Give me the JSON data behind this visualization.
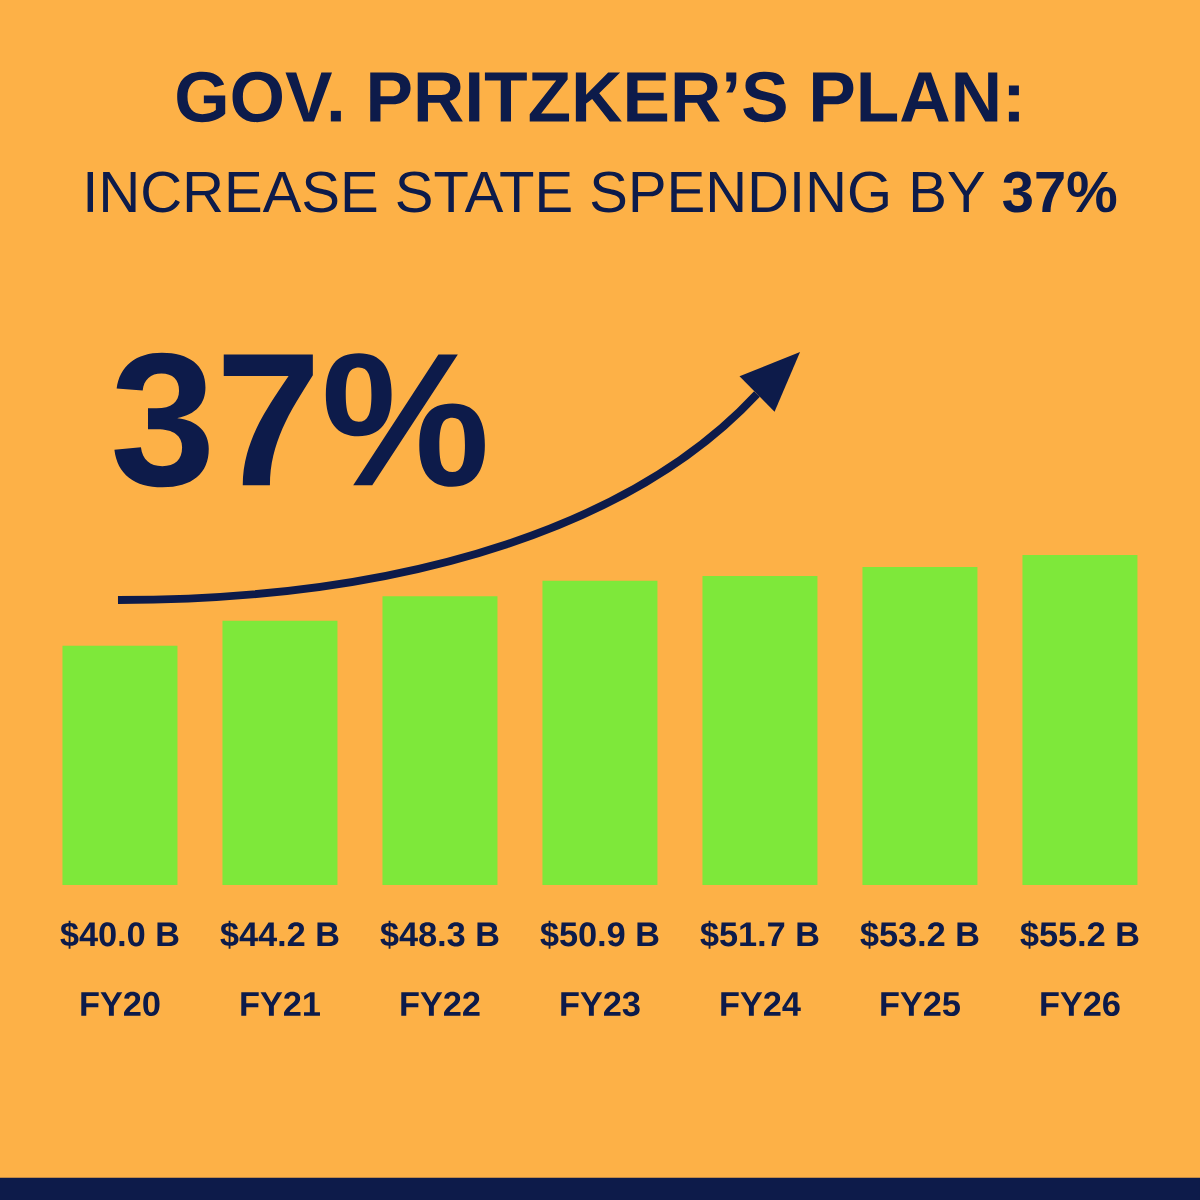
{
  "chart_data": {
    "type": "bar",
    "title": "GOV. PRITZKER’S PLAN:",
    "subtitle": "INCREASE STATE SPENDING BY **37%**",
    "categories": [
      "FY20",
      "FY21",
      "FY22",
      "FY23",
      "FY24",
      "FY25",
      "FY26"
    ],
    "values": [
      40.0,
      44.2,
      48.3,
      50.9,
      51.7,
      53.2,
      55.2
    ],
    "value_labels": [
      "$40.0 B",
      "$44.2 B",
      "$48.3 B",
      "$50.9 B",
      "$51.7 B",
      "$53.2 B",
      "$55.2 B"
    ],
    "color": "#7ee83a",
    "annotations": [
      "37%"
    ]
  }
}
